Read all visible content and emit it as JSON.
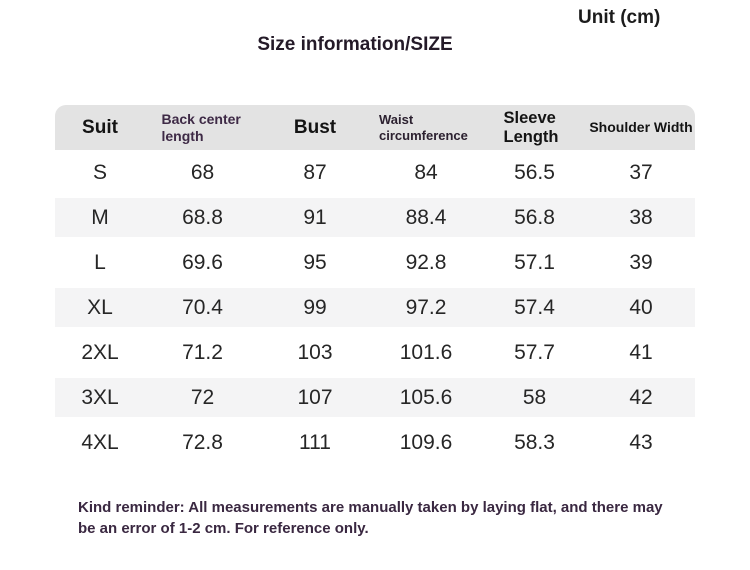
{
  "page": {
    "unit_label": "Unit (cm)",
    "title": "Size information/SIZE",
    "note": "Kind reminder: All measurements are manually taken by laying flat, and there may be an error of 1-2 cm. For reference only."
  },
  "colors": {
    "header_background": "#e3e3e3",
    "stripe_background": "#f4f4f5",
    "note_text": "#3a2841",
    "table_text": "#262626"
  },
  "table": {
    "columns": [
      "Suit",
      "Back center length",
      "Bust",
      "Waist circumference",
      "Sleeve Length",
      "Shoulder Width"
    ],
    "rows": [
      {
        "size": "S",
        "values": [
          "68",
          "87",
          "84",
          "56.5",
          "37"
        ]
      },
      {
        "size": "M",
        "values": [
          "68.8",
          "91",
          "88.4",
          "56.8",
          "38"
        ]
      },
      {
        "size": "L",
        "values": [
          "69.6",
          "95",
          "92.8",
          "57.1",
          "39"
        ]
      },
      {
        "size": "XL",
        "values": [
          "70.4",
          "99",
          "97.2",
          "57.4",
          "40"
        ]
      },
      {
        "size": "2XL",
        "values": [
          "71.2",
          "103",
          "101.6",
          "57.7",
          "41"
        ]
      },
      {
        "size": "3XL",
        "values": [
          "72",
          "107",
          "105.6",
          "58",
          "42"
        ]
      },
      {
        "size": "4XL",
        "values": [
          "72.8",
          "111",
          "109.6",
          "58.3",
          "43"
        ]
      }
    ]
  }
}
